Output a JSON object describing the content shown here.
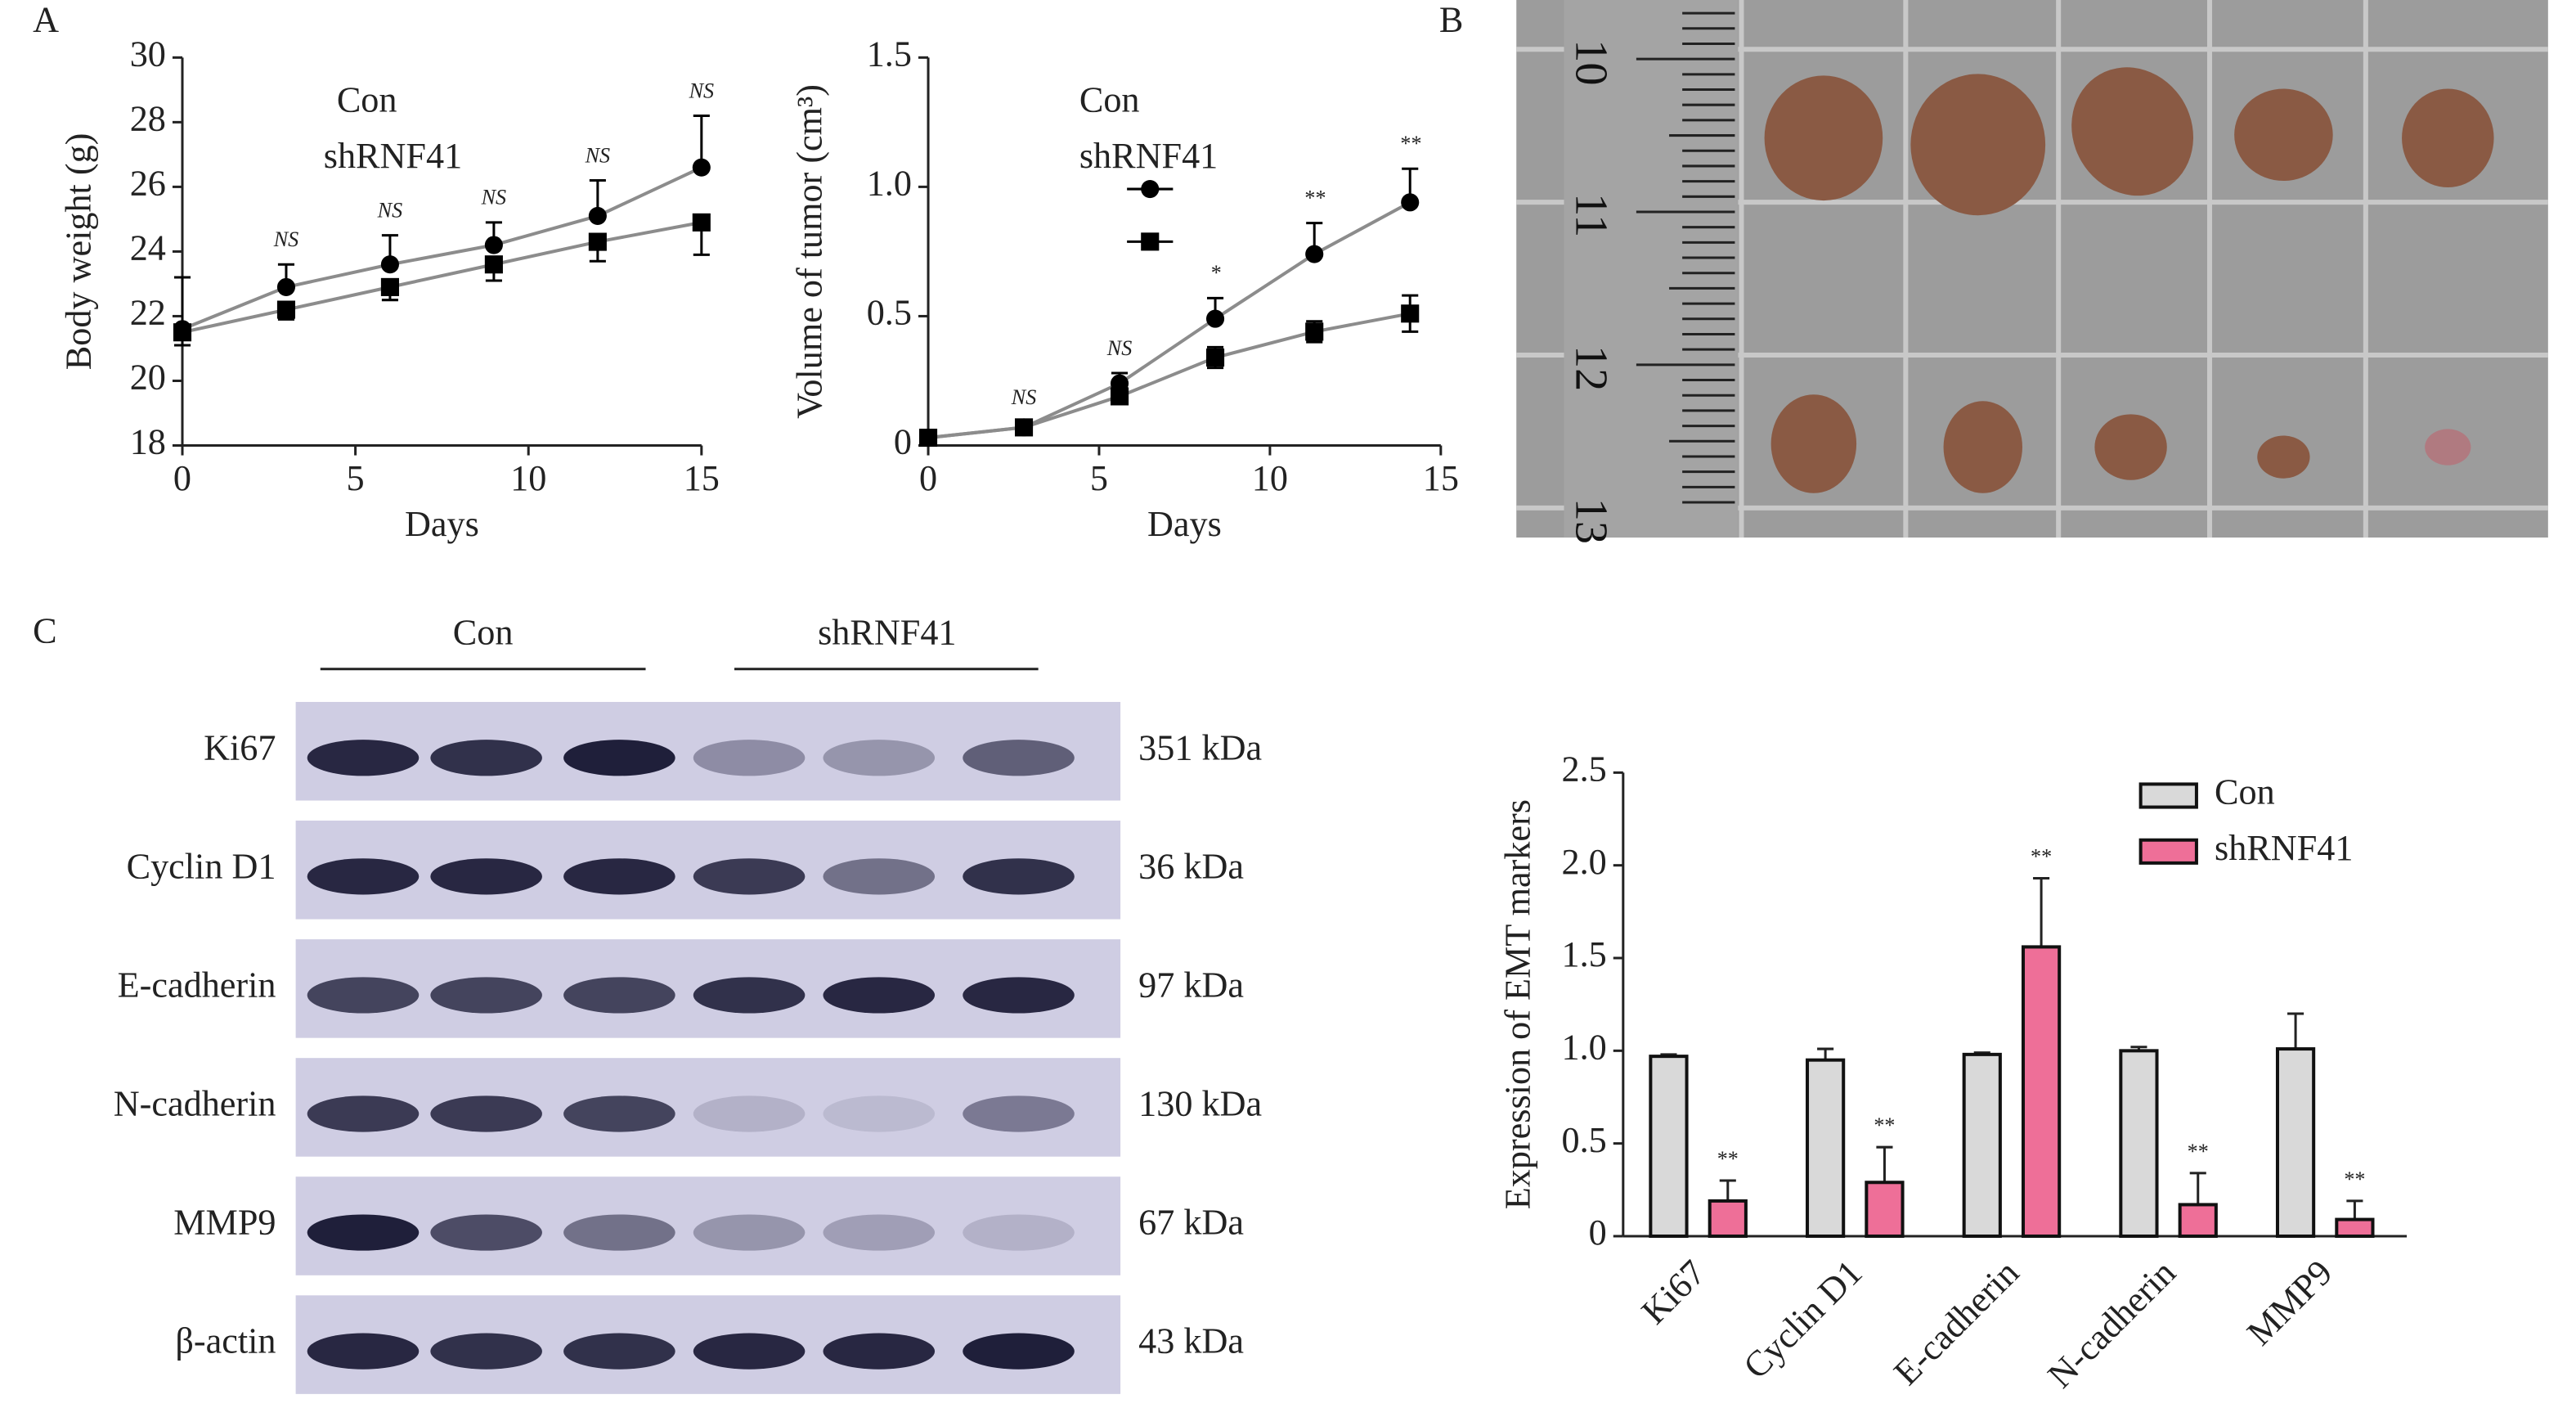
{
  "panel_labels": [
    "A",
    "B",
    "C"
  ],
  "photo": {
    "ruler_labels": [
      "10",
      "11",
      "12",
      "13"
    ]
  },
  "blot": {
    "groups": [
      "Con",
      "shRNF41"
    ],
    "rows": [
      {
        "protein": "Ki67",
        "size": "351 kDa"
      },
      {
        "protein": "Cyclin D1",
        "size": "36 kDa"
      },
      {
        "protein": "E-cadherin",
        "size": "97 kDa"
      },
      {
        "protein": "N-cadherin",
        "size": "130 kDa"
      },
      {
        "protein": "MMP9",
        "size": "67 kDa"
      },
      {
        "protein": "β-actin",
        "size": "43 kDa"
      }
    ]
  },
  "chart_data": [
    {
      "type": "line",
      "xlabel": "Days",
      "ylabel": "Body weight (g)",
      "x": [
        0,
        3,
        6,
        9,
        12,
        15
      ],
      "xlim": [
        0,
        15
      ],
      "xticks": [
        0,
        5,
        10,
        15
      ],
      "ylim": [
        18,
        30
      ],
      "yticks": [
        18,
        20,
        22,
        24,
        26,
        28,
        30
      ],
      "line_color": "#8c8c8c",
      "series": [
        {
          "name": "Con",
          "color": "#000000",
          "marker": "circle",
          "error_direction": "up",
          "values": [
            21.6,
            22.9,
            23.6,
            24.2,
            25.1,
            26.6
          ],
          "errors": [
            1.6,
            0.7,
            0.9,
            0.7,
            1.1,
            1.6
          ],
          "annotations": [
            null,
            "NS",
            "NS",
            "NS",
            "NS",
            "NS"
          ]
        },
        {
          "name": "shRNF41",
          "color": "#000000",
          "marker": "square",
          "error_direction": "down",
          "values": [
            21.5,
            22.2,
            22.9,
            23.6,
            24.3,
            24.9
          ],
          "errors": [
            0.4,
            0.3,
            0.4,
            0.5,
            0.6,
            1.0
          ]
        }
      ]
    },
    {
      "type": "line",
      "xlabel": "Days",
      "ylabel": "Volume of tumor (cm³)",
      "x": [
        0,
        2.8,
        5.6,
        8.4,
        11.3,
        14.1
      ],
      "xlim": [
        0,
        15
      ],
      "xticks": [
        0,
        5,
        10,
        15
      ],
      "ylim": [
        0,
        1.5
      ],
      "yticks": [
        0,
        0.5,
        {
          "value": 1,
          "label": "1.0"
        },
        1.5
      ],
      "line_color": "#8c8c8c",
      "legend_markers": true,
      "series": [
        {
          "name": "Con",
          "color": "#000000",
          "marker": "circle",
          "error_direction": "up",
          "values": [
            0.03,
            0.07,
            0.24,
            0.49,
            0.74,
            0.94
          ],
          "errors": [
            0.01,
            0.02,
            0.04,
            0.08,
            0.12,
            0.13
          ],
          "annotations": [
            null,
            "NS",
            "NS",
            "*",
            "**",
            "**"
          ]
        },
        {
          "name": "shRNF41",
          "color": "#000000",
          "marker": "square",
          "error_direction": "both",
          "values": [
            0.03,
            0.07,
            0.19,
            0.34,
            0.44,
            0.51
          ],
          "errors": [
            0.01,
            0.01,
            0.03,
            0.04,
            0.04,
            0.07
          ]
        }
      ]
    },
    {
      "type": "bar",
      "ylabel": "Expression of EMT markers",
      "categories": [
        "Ki67",
        "Cyclin D1",
        "E-cadherin",
        "N-cadherin",
        "MMP9"
      ],
      "ylim": [
        0,
        2.5
      ],
      "yticks": [
        0,
        0.5,
        {
          "value": 1,
          "label": "1.0"
        },
        1.5,
        {
          "value": 2,
          "label": "2.0"
        },
        2.5
      ],
      "series": [
        {
          "name": "Con",
          "color": "#d9d9d9",
          "error_direction": "up",
          "values": [
            0.97,
            0.95,
            0.98,
            1.0,
            1.01
          ],
          "errors": [
            0.01,
            0.06,
            0.01,
            0.02,
            0.19
          ]
        },
        {
          "name": "shRNF41",
          "color": "#ee6f98",
          "error_direction": "up",
          "values": [
            0.19,
            0.29,
            1.56,
            0.17,
            0.09
          ],
          "errors": [
            0.11,
            0.19,
            0.37,
            0.17,
            0.1
          ],
          "annotations": [
            "**",
            "**",
            "**",
            "**",
            "**"
          ]
        }
      ]
    }
  ]
}
